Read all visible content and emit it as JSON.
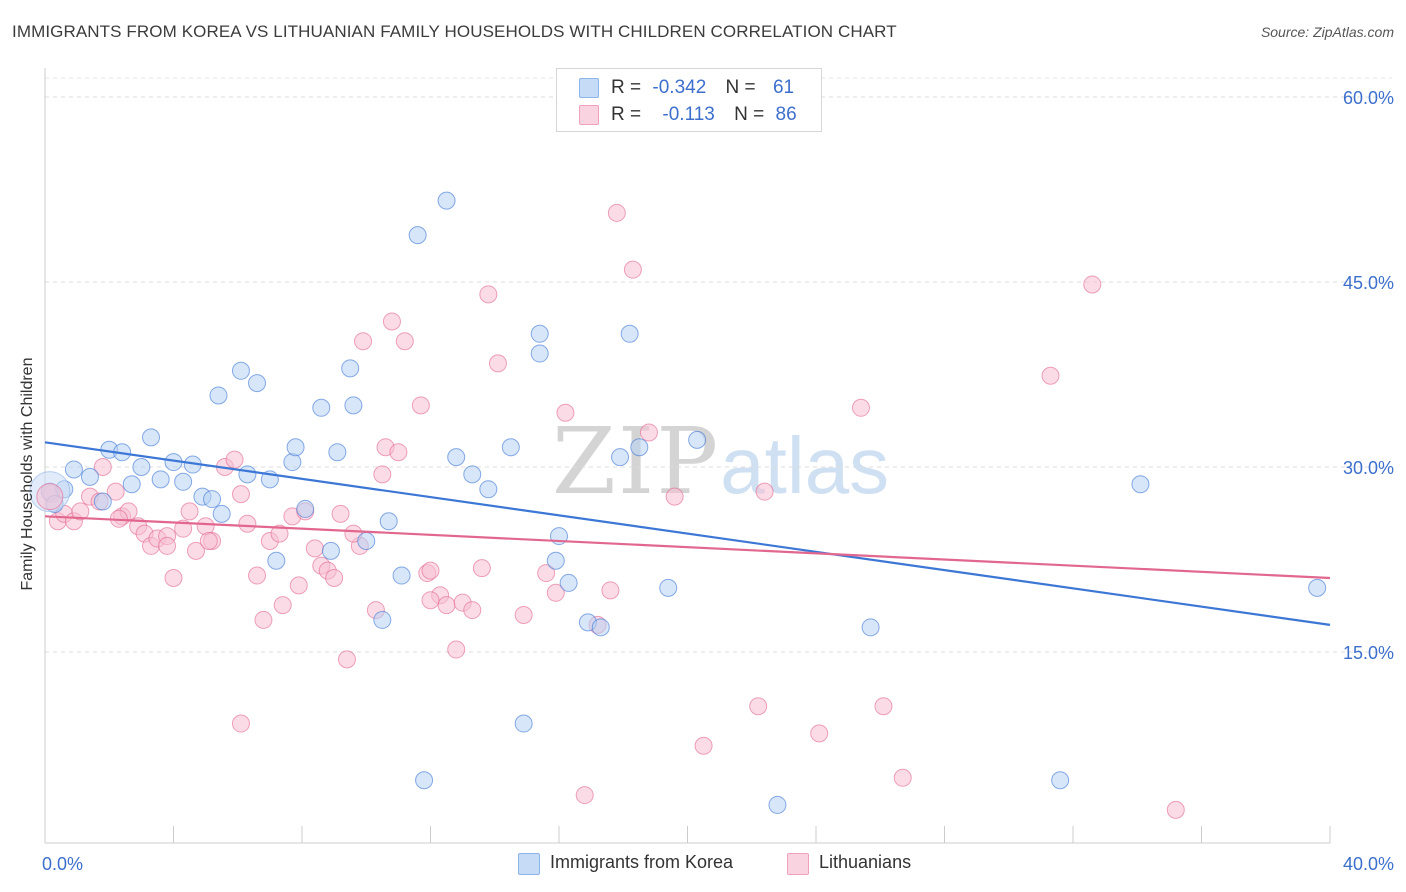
{
  "title": "IMMIGRANTS FROM KOREA VS LITHUANIAN FAMILY HOUSEHOLDS WITH CHILDREN CORRELATION CHART",
  "source": "Source: ZipAtlas.com",
  "watermark": {
    "zip": "ZIP",
    "atlas": "atlas"
  },
  "legend_top": {
    "rows": [
      {
        "r_label": "R =",
        "r_value": "-0.342",
        "n_label": "N =",
        "n_value": "61",
        "color": "#9cc0ee"
      },
      {
        "r_label": "R =",
        "r_value": "-0.113",
        "n_label": "N =",
        "n_value": "86",
        "color": "#f4b3c8"
      }
    ]
  },
  "legend_bottom": [
    {
      "label": "Immigrants from Korea",
      "color": "#9cc0ee"
    },
    {
      "label": "Lithuanians",
      "color": "#f4b3c8"
    }
  ],
  "chart_data": {
    "type": "scatter",
    "xlabel": "",
    "ylabel": "Family Households with Children",
    "xlim": [
      0,
      40
    ],
    "ylim": [
      0,
      63
    ],
    "x_tick_labels": [
      {
        "value": 0,
        "label": "0.0%"
      },
      {
        "value": 40,
        "label": "40.0%"
      }
    ],
    "y_tick_labels": [
      {
        "value": 15,
        "label": "15.0%"
      },
      {
        "value": 30,
        "label": "30.0%"
      },
      {
        "value": 45,
        "label": "45.0%"
      },
      {
        "value": 60,
        "label": "60.0%"
      }
    ],
    "grid": true,
    "legend_position": "bottom",
    "series": [
      {
        "name": "Immigrants from Korea",
        "color": "#3d77d6",
        "fill": "#b7d1f3",
        "trend": {
          "x": [
            0,
            40
          ],
          "y": [
            32.0,
            17.2
          ]
        },
        "points": [
          [
            0.15,
            28.0
          ],
          [
            0.3,
            27.0
          ],
          [
            0.6,
            28.2
          ],
          [
            0.9,
            29.8
          ],
          [
            1.4,
            29.2
          ],
          [
            1.8,
            27.2
          ],
          [
            2.0,
            31.4
          ],
          [
            2.4,
            31.2
          ],
          [
            2.7,
            28.6
          ],
          [
            3.0,
            30.0
          ],
          [
            3.3,
            32.4
          ],
          [
            3.6,
            29.0
          ],
          [
            4.0,
            30.4
          ],
          [
            4.3,
            28.8
          ],
          [
            4.6,
            30.2
          ],
          [
            4.9,
            27.6
          ],
          [
            5.2,
            27.4
          ],
          [
            5.5,
            26.2
          ],
          [
            5.4,
            35.8
          ],
          [
            6.1,
            37.8
          ],
          [
            6.6,
            36.8
          ],
          [
            6.3,
            29.4
          ],
          [
            7.0,
            29.0
          ],
          [
            7.7,
            30.4
          ],
          [
            7.8,
            31.6
          ],
          [
            8.1,
            26.6
          ],
          [
            8.6,
            34.8
          ],
          [
            9.1,
            31.2
          ],
          [
            9.5,
            38.0
          ],
          [
            9.6,
            35.0
          ],
          [
            10.0,
            24.0
          ],
          [
            10.5,
            17.6
          ],
          [
            10.7,
            25.6
          ],
          [
            11.1,
            21.2
          ],
          [
            11.6,
            48.8
          ],
          [
            12.5,
            51.6
          ],
          [
            12.8,
            30.8
          ],
          [
            13.3,
            29.4
          ],
          [
            13.8,
            28.2
          ],
          [
            14.5,
            31.6
          ],
          [
            15.4,
            40.8
          ],
          [
            15.4,
            39.2
          ],
          [
            15.9,
            22.4
          ],
          [
            16.0,
            24.4
          ],
          [
            16.3,
            20.6
          ],
          [
            16.9,
            17.4
          ],
          [
            17.3,
            17.0
          ],
          [
            17.9,
            30.8
          ],
          [
            18.2,
            40.8
          ],
          [
            18.5,
            31.6
          ],
          [
            19.4,
            20.2
          ],
          [
            20.3,
            32.2
          ],
          [
            22.8,
            2.6
          ],
          [
            25.7,
            17.0
          ],
          [
            7.2,
            22.4
          ],
          [
            8.9,
            23.2
          ],
          [
            11.8,
            4.6
          ],
          [
            14.9,
            9.2
          ],
          [
            31.6,
            4.6
          ],
          [
            34.1,
            28.6
          ],
          [
            39.6,
            20.2
          ]
        ]
      },
      {
        "name": "Lithuanians",
        "color": "#e2678f",
        "fill": "#f7c0d2",
        "trend": {
          "x": [
            0,
            40
          ],
          "y": [
            26.0,
            21.0
          ]
        },
        "points": [
          [
            0.2,
            27.8
          ],
          [
            0.4,
            25.6
          ],
          [
            0.6,
            26.2
          ],
          [
            0.9,
            25.6
          ],
          [
            1.1,
            26.4
          ],
          [
            1.4,
            27.6
          ],
          [
            1.7,
            27.2
          ],
          [
            1.8,
            30.0
          ],
          [
            2.2,
            28.0
          ],
          [
            2.4,
            26.0
          ],
          [
            2.6,
            26.4
          ],
          [
            2.9,
            25.2
          ],
          [
            3.1,
            24.6
          ],
          [
            3.3,
            23.6
          ],
          [
            3.5,
            24.2
          ],
          [
            3.8,
            24.4
          ],
          [
            4.0,
            21.0
          ],
          [
            4.3,
            25.0
          ],
          [
            4.5,
            26.4
          ],
          [
            4.7,
            23.2
          ],
          [
            5.0,
            25.2
          ],
          [
            5.2,
            24.0
          ],
          [
            5.6,
            30.0
          ],
          [
            5.9,
            30.6
          ],
          [
            6.1,
            27.8
          ],
          [
            6.3,
            25.4
          ],
          [
            6.6,
            21.2
          ],
          [
            6.8,
            17.6
          ],
          [
            7.0,
            24.0
          ],
          [
            7.3,
            24.6
          ],
          [
            7.4,
            18.8
          ],
          [
            7.7,
            26.0
          ],
          [
            7.9,
            20.4
          ],
          [
            8.1,
            26.4
          ],
          [
            8.4,
            23.4
          ],
          [
            8.6,
            22.0
          ],
          [
            8.8,
            21.6
          ],
          [
            9.0,
            21.0
          ],
          [
            9.2,
            26.2
          ],
          [
            9.4,
            14.4
          ],
          [
            9.8,
            23.6
          ],
          [
            9.9,
            40.2
          ],
          [
            10.3,
            18.4
          ],
          [
            10.5,
            29.4
          ],
          [
            10.6,
            31.6
          ],
          [
            10.8,
            41.8
          ],
          [
            11.0,
            31.2
          ],
          [
            11.2,
            40.2
          ],
          [
            11.7,
            35.0
          ],
          [
            11.9,
            21.4
          ],
          [
            12.0,
            21.6
          ],
          [
            12.3,
            19.6
          ],
          [
            12.5,
            18.8
          ],
          [
            12.8,
            15.2
          ],
          [
            13.0,
            19.0
          ],
          [
            13.3,
            18.4
          ],
          [
            13.6,
            21.8
          ],
          [
            13.8,
            44.0
          ],
          [
            14.1,
            38.4
          ],
          [
            14.9,
            18.0
          ],
          [
            15.6,
            21.4
          ],
          [
            15.9,
            19.8
          ],
          [
            16.2,
            34.4
          ],
          [
            16.8,
            3.4
          ],
          [
            17.2,
            17.2
          ],
          [
            17.6,
            20.0
          ],
          [
            17.8,
            50.6
          ],
          [
            18.3,
            46.0
          ],
          [
            18.8,
            32.8
          ],
          [
            19.6,
            27.6
          ],
          [
            20.5,
            7.4
          ],
          [
            22.2,
            10.6
          ],
          [
            22.4,
            28.0
          ],
          [
            24.1,
            8.4
          ],
          [
            25.4,
            34.8
          ],
          [
            26.1,
            10.6
          ],
          [
            26.7,
            4.8
          ],
          [
            31.3,
            37.4
          ],
          [
            32.6,
            44.8
          ],
          [
            35.2,
            2.2
          ],
          [
            6.1,
            9.2
          ],
          [
            3.8,
            23.6
          ],
          [
            5.1,
            24.0
          ],
          [
            9.6,
            24.6
          ],
          [
            12.0,
            19.2
          ],
          [
            2.3,
            25.8
          ]
        ]
      }
    ]
  }
}
